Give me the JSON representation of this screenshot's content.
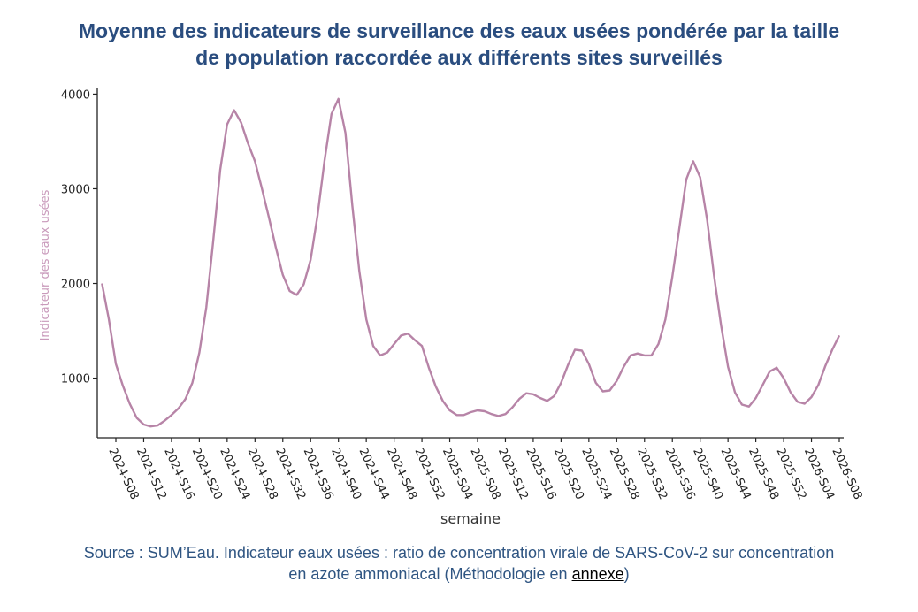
{
  "title": {
    "line1": "Moyenne des indicateurs de surveillance des eaux usées pondérée par la taille",
    "line2": "de population raccordée aux différents sites surveillés"
  },
  "caption": {
    "line1": "Source : SUM’Eau. Indicateur eaux usées : ratio de concentration virale de SARS-CoV-2 sur concentration",
    "line2_prefix": "en azote ammoniacal (Méthodologie en ",
    "link_text": "annexe",
    "line2_suffix": ")"
  },
  "colors": {
    "title": "#2a4d7f",
    "line": "#b784a7",
    "ylabel": "#c99abb",
    "caption": "#2f5582"
  },
  "chart_data": {
    "type": "line",
    "title": "Moyenne des indicateurs de surveillance des eaux usées pondérée par la taille de population raccordée aux différents sites surveillés",
    "xlabel": "semaine",
    "ylabel": "Indicateur des eaux usées",
    "ylim": [
      370,
      4060
    ],
    "yticks": [
      1000,
      2000,
      3000,
      4000
    ],
    "grid": false,
    "x_start_week_offset": -2,
    "xtick_labels": [
      "2024-S08",
      "2024-S12",
      "2024-S16",
      "2024-S20",
      "2024-S24",
      "2024-S28",
      "2024-S32",
      "2024-S36",
      "2024-S40",
      "2024-S44",
      "2024-S48",
      "2024-S52",
      "2025-S04",
      "2025-S08",
      "2025-S12",
      "2025-S16",
      "2025-S20",
      "2025-S24",
      "2025-S28",
      "2025-S32",
      "2025-S36",
      "2025-S40",
      "2025-S44",
      "2025-S48",
      "2025-S52",
      "2026-S04",
      "2026-S08"
    ],
    "series": [
      {
        "name": "Indicateur des eaux usées",
        "first_week": "2024-S06",
        "last_week": "2026-S08",
        "values": [
          2000,
          1620,
          1150,
          920,
          730,
          580,
          510,
          490,
          500,
          550,
          610,
          680,
          780,
          950,
          1270,
          1750,
          2450,
          3200,
          3680,
          3830,
          3700,
          3480,
          3290,
          3000,
          2700,
          2380,
          2090,
          1920,
          1880,
          1990,
          2250,
          2720,
          3300,
          3790,
          3950,
          3590,
          2820,
          2130,
          1620,
          1340,
          1240,
          1270,
          1360,
          1450,
          1470,
          1400,
          1340,
          1110,
          910,
          760,
          660,
          610,
          610,
          640,
          660,
          650,
          620,
          600,
          620,
          690,
          780,
          840,
          830,
          790,
          760,
          810,
          950,
          1140,
          1300,
          1290,
          1150,
          950,
          860,
          870,
          970,
          1120,
          1240,
          1260,
          1240,
          1240,
          1360,
          1620,
          2070,
          2580,
          3100,
          3290,
          3120,
          2670,
          2080,
          1560,
          1120,
          850,
          720,
          700,
          790,
          930,
          1070,
          1110,
          1000,
          850,
          750,
          730,
          800,
          930,
          1130,
          1300,
          1450
        ]
      }
    ]
  }
}
